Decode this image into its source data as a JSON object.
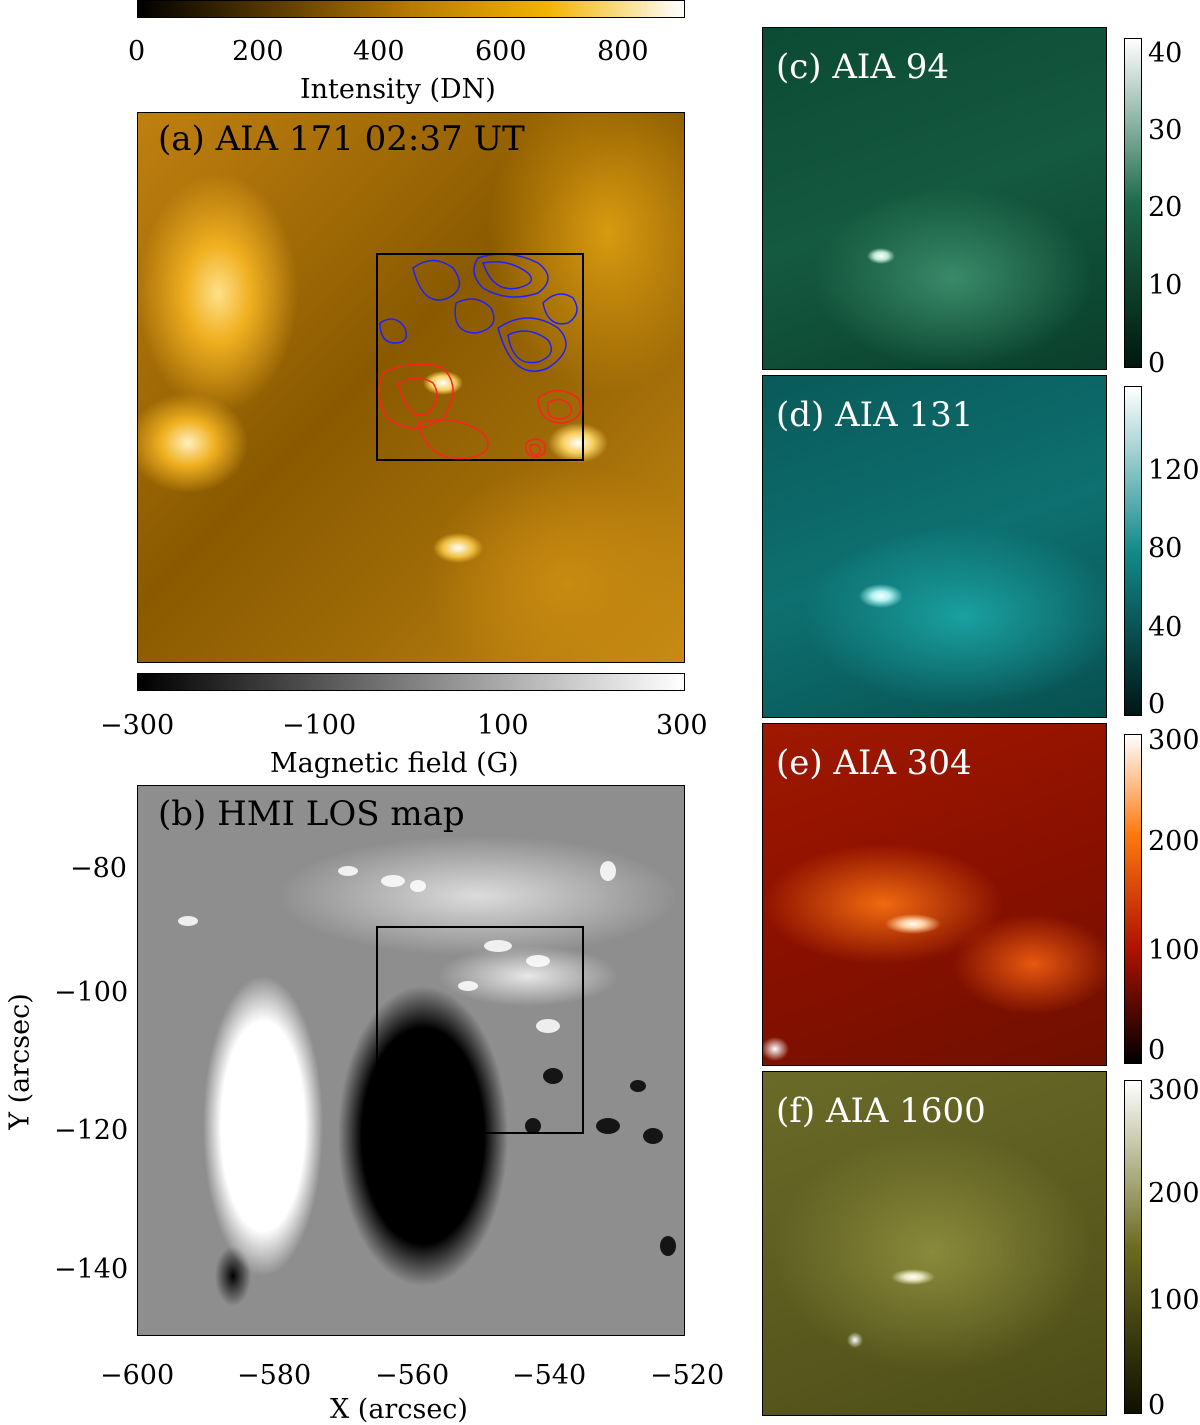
{
  "figure": {
    "panel_a": {
      "label": "(a) AIA 171 02:37 UT",
      "colorbar": {
        "title": "Intensity (DN)",
        "ticks": [
          "0",
          "200",
          "400",
          "600",
          "800"
        ],
        "range": [
          0,
          900
        ],
        "colors": [
          "#000000",
          "#5a3a00",
          "#b87a00",
          "#f2b400",
          "#ffffff"
        ]
      },
      "contour_colors": [
        "#ff2020",
        "#2020ff"
      ]
    },
    "panel_b": {
      "label": "(b) HMI LOS map",
      "colorbar": {
        "title": "Magnetic field (G)",
        "ticks": [
          "−300",
          "−100",
          "100",
          "300"
        ],
        "range": [
          -300,
          300
        ],
        "colors": [
          "#000000",
          "#ffffff"
        ]
      },
      "x_axis": {
        "title": "X (arcsec)",
        "ticks": [
          "−600",
          "−580",
          "−560",
          "−540",
          "−520"
        ]
      },
      "y_axis": {
        "title": "Y (arcsec)",
        "ticks": [
          "−80",
          "−100",
          "−120",
          "−140"
        ]
      }
    },
    "side_panels": [
      {
        "label": "(c) AIA 94",
        "ticks": [
          "0",
          "10",
          "20",
          "30",
          "40"
        ],
        "colors": [
          "#00180e",
          "#1d6a4c",
          "#ffffff"
        ]
      },
      {
        "label": "(d) AIA 131",
        "ticks": [
          "0",
          "40",
          "80",
          "120"
        ],
        "colors": [
          "#001515",
          "#138a8a",
          "#ffffff"
        ]
      },
      {
        "label": "(e) AIA 304",
        "ticks": [
          "0",
          "100",
          "200",
          "300"
        ],
        "colors": [
          "#000000",
          "#b01200",
          "#ff7a10",
          "#ffffff"
        ]
      },
      {
        "label": "(f) AIA 1600",
        "ticks": [
          "0",
          "100",
          "200",
          "300"
        ],
        "colors": [
          "#101000",
          "#6c6c20",
          "#ffffff"
        ]
      }
    ]
  }
}
